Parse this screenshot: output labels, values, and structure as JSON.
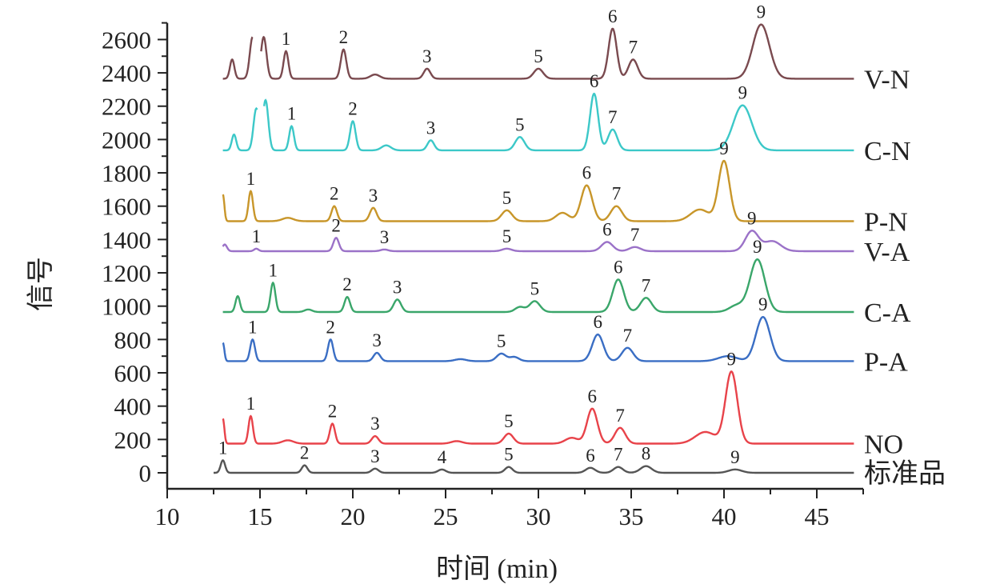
{
  "chart_data": {
    "type": "line",
    "xlabel": "时间 (min)",
    "ylabel": "信号",
    "xlim": [
      10,
      47.5
    ],
    "ylim": [
      -100,
      2700
    ],
    "xticks": [
      10,
      15,
      20,
      25,
      30,
      35,
      40,
      45
    ],
    "yticks": [
      0,
      200,
      400,
      600,
      800,
      1000,
      1200,
      1400,
      1600,
      1800,
      2000,
      2200,
      2400,
      2600
    ],
    "grid": false,
    "series": [
      {
        "name": "标准品",
        "color": "#555555",
        "baseline": 0,
        "x_start": 12.5,
        "x_end": 47,
        "peaks": [
          [
            13.0,
            75,
            0.12,
            "1"
          ],
          [
            17.4,
            45,
            0.15,
            "2"
          ],
          [
            21.2,
            25,
            0.18,
            "3"
          ],
          [
            24.8,
            20,
            0.2,
            "4"
          ],
          [
            28.4,
            35,
            0.2,
            "5"
          ],
          [
            32.8,
            30,
            0.25,
            "6"
          ],
          [
            34.3,
            35,
            0.25,
            "7"
          ],
          [
            35.8,
            40,
            0.3,
            "8"
          ],
          [
            40.6,
            20,
            0.35,
            "9"
          ]
        ]
      },
      {
        "name": "NO",
        "color": "#e8434a",
        "baseline": 175,
        "x_start": 13,
        "x_end": 47,
        "peaks": [
          [
            13.0,
            150,
            0.08,
            ""
          ],
          [
            14.5,
            165,
            0.12,
            "1"
          ],
          [
            16.5,
            20,
            0.3,
            ""
          ],
          [
            18.9,
            120,
            0.14,
            "2"
          ],
          [
            21.2,
            45,
            0.18,
            "3"
          ],
          [
            25.6,
            15,
            0.3,
            ""
          ],
          [
            28.4,
            60,
            0.25,
            "5"
          ],
          [
            31.8,
            35,
            0.35,
            ""
          ],
          [
            32.9,
            210,
            0.28,
            "6"
          ],
          [
            34.4,
            95,
            0.28,
            "7"
          ],
          [
            39.0,
            70,
            0.55,
            ""
          ],
          [
            40.4,
            430,
            0.32,
            "9"
          ]
        ]
      },
      {
        "name": "P-A",
        "color": "#3a6ec4",
        "baseline": 670,
        "x_start": 13,
        "x_end": 47,
        "peaks": [
          [
            13.0,
            110,
            0.08,
            ""
          ],
          [
            14.6,
            130,
            0.13,
            "1"
          ],
          [
            18.8,
            130,
            0.14,
            "2"
          ],
          [
            21.3,
            50,
            0.18,
            "3"
          ],
          [
            25.8,
            12,
            0.3,
            ""
          ],
          [
            28.0,
            45,
            0.25,
            "5"
          ],
          [
            28.7,
            25,
            0.25,
            ""
          ],
          [
            33.2,
            160,
            0.3,
            "6"
          ],
          [
            34.8,
            80,
            0.3,
            "7"
          ],
          [
            40.2,
            30,
            0.5,
            ""
          ],
          [
            42.1,
            265,
            0.38,
            "9"
          ]
        ]
      },
      {
        "name": "C-A",
        "color": "#3aa66a",
        "baseline": 965,
        "x_start": 13,
        "x_end": 47,
        "peaks": [
          [
            13.8,
            95,
            0.12,
            ""
          ],
          [
            15.7,
            175,
            0.13,
            "1"
          ],
          [
            17.6,
            15,
            0.2,
            ""
          ],
          [
            19.7,
            90,
            0.15,
            "2"
          ],
          [
            22.4,
            75,
            0.2,
            "3"
          ],
          [
            29.8,
            65,
            0.28,
            "5"
          ],
          [
            29.0,
            30,
            0.25,
            ""
          ],
          [
            34.3,
            195,
            0.3,
            "6"
          ],
          [
            35.8,
            85,
            0.3,
            "7"
          ],
          [
            40.7,
            40,
            0.4,
            ""
          ],
          [
            41.8,
            315,
            0.4,
            "9"
          ]
        ]
      },
      {
        "name": "V-A",
        "color": "#9b72c8",
        "baseline": 1330,
        "x_start": 13,
        "x_end": 47,
        "peaks": [
          [
            13.1,
            40,
            0.12,
            ""
          ],
          [
            14.8,
            15,
            0.12,
            "1"
          ],
          [
            19.1,
            80,
            0.15,
            "2"
          ],
          [
            21.7,
            10,
            0.2,
            "3"
          ],
          [
            28.3,
            15,
            0.25,
            "5"
          ],
          [
            33.7,
            55,
            0.3,
            "6"
          ],
          [
            35.2,
            25,
            0.3,
            "7"
          ],
          [
            41.5,
            120,
            0.35,
            "9"
          ],
          [
            42.6,
            60,
            0.45,
            ""
          ]
        ]
      },
      {
        "name": "P-N",
        "color": "#c8962a",
        "baseline": 1510,
        "x_start": 13,
        "x_end": 47,
        "peaks": [
          [
            13.0,
            160,
            0.08,
            ""
          ],
          [
            14.5,
            180,
            0.12,
            "1"
          ],
          [
            16.5,
            20,
            0.3,
            ""
          ],
          [
            19.0,
            90,
            0.15,
            "2"
          ],
          [
            21.1,
            80,
            0.18,
            "3"
          ],
          [
            28.3,
            65,
            0.28,
            "5"
          ],
          [
            31.3,
            50,
            0.35,
            ""
          ],
          [
            32.6,
            215,
            0.3,
            "6"
          ],
          [
            34.2,
            90,
            0.3,
            "7"
          ],
          [
            38.7,
            70,
            0.5,
            ""
          ],
          [
            40.0,
            360,
            0.3,
            "9"
          ]
        ]
      },
      {
        "name": "C-N",
        "color": "#3cc8c8",
        "baseline": 1935,
        "x_start": 13,
        "x_end": 47,
        "peaks": [
          [
            13.6,
            95,
            0.12,
            ""
          ],
          [
            14.8,
            250,
            0.15,
            ""
          ],
          [
            15.3,
            300,
            0.15,
            ""
          ],
          [
            16.7,
            145,
            0.13,
            "1"
          ],
          [
            20.0,
            175,
            0.15,
            "2"
          ],
          [
            21.8,
            30,
            0.25,
            ""
          ],
          [
            24.2,
            60,
            0.18,
            "3"
          ],
          [
            29.0,
            80,
            0.25,
            "5"
          ],
          [
            33.0,
            340,
            0.22,
            "6"
          ],
          [
            34.0,
            125,
            0.25,
            "7"
          ],
          [
            41.0,
            270,
            0.5,
            "9"
          ]
        ],
        "gaps": [
          [
            14.85,
            15.2
          ]
        ]
      },
      {
        "name": "V-N",
        "color": "#7a4a4f",
        "baseline": 2365,
        "x_start": 13,
        "x_end": 47,
        "peaks": [
          [
            13.5,
            115,
            0.12,
            ""
          ],
          [
            14.6,
            250,
            0.15,
            ""
          ],
          [
            15.2,
            250,
            0.15,
            ""
          ],
          [
            16.4,
            165,
            0.13,
            "1"
          ],
          [
            19.5,
            175,
            0.15,
            "2"
          ],
          [
            21.2,
            25,
            0.25,
            ""
          ],
          [
            24.0,
            60,
            0.18,
            "3"
          ],
          [
            30.0,
            60,
            0.25,
            "5"
          ],
          [
            34.0,
            300,
            0.22,
            "6"
          ],
          [
            35.1,
            115,
            0.25,
            "7"
          ],
          [
            42.0,
            325,
            0.45,
            "9"
          ]
        ],
        "gaps": [
          [
            14.6,
            15.05
          ]
        ]
      }
    ]
  }
}
